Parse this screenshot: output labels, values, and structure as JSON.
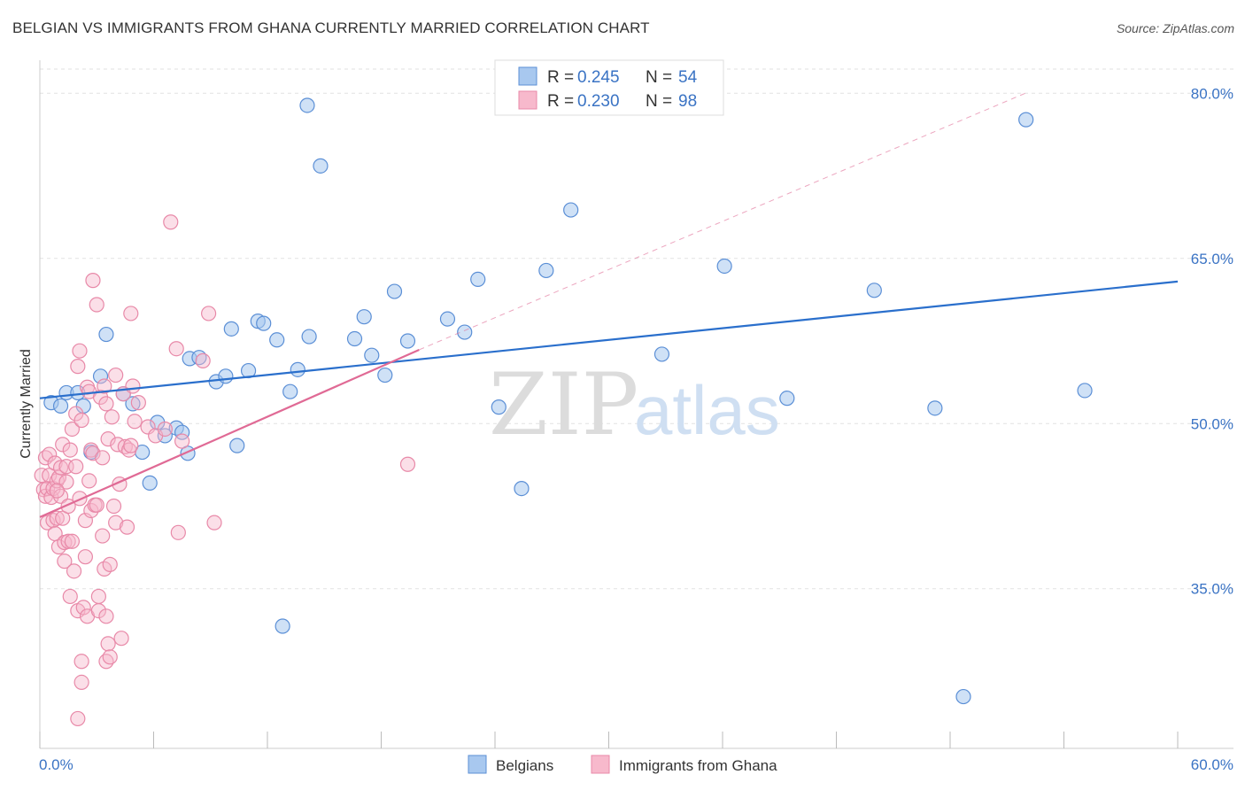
{
  "header": {
    "title": "BELGIAN VS IMMIGRANTS FROM GHANA CURRENTLY MARRIED CORRELATION CHART",
    "source": "Source: ZipAtlas.com"
  },
  "watermark": {
    "zip": "ZIP",
    "atlas": "atlas"
  },
  "colors": {
    "blue_fill": "#a8c8ef",
    "blue_stroke": "#5b8fd6",
    "blue_line": "#2a6fcc",
    "pink_fill": "#f7b9cc",
    "pink_stroke": "#e889a8",
    "pink_line": "#e06a95",
    "axis_text": "#3a73c4"
  },
  "chart_data": {
    "type": "scatter",
    "title": "BELGIAN VS IMMIGRANTS FROM GHANA CURRENTLY MARRIED CORRELATION CHART",
    "xlabel": "",
    "ylabel": "Currently Married",
    "xlim": [
      0,
      60
    ],
    "ylim": [
      20.5,
      83
    ],
    "x_tick_labels": [
      "0.0%",
      "60.0%"
    ],
    "y_ticks": [
      35,
      50,
      65,
      80
    ],
    "y_tick_labels": [
      "35.0%",
      "50.0%",
      "65.0%",
      "80.0%"
    ],
    "legend": [
      {
        "name": "Belgians",
        "R_label": "R =",
        "R": "0.245",
        "N_label": "N =",
        "N": "54"
      },
      {
        "name": "Immigrants from Ghana",
        "R_label": "R =",
        "R": "0.230",
        "N_label": "N =",
        "N": "98"
      }
    ],
    "series": [
      {
        "name": "Belgians",
        "trend": {
          "x": [
            0,
            60
          ],
          "y": [
            52.3,
            62.9
          ]
        },
        "points": [
          [
            0.6,
            51.9
          ],
          [
            1.1,
            51.6
          ],
          [
            1.4,
            52.8
          ],
          [
            2.0,
            52.8
          ],
          [
            2.3,
            51.6
          ],
          [
            2.7,
            47.4
          ],
          [
            3.2,
            54.3
          ],
          [
            3.5,
            58.1
          ],
          [
            4.4,
            52.7
          ],
          [
            4.9,
            51.8
          ],
          [
            5.4,
            47.4
          ],
          [
            5.8,
            44.6
          ],
          [
            6.2,
            50.1
          ],
          [
            6.6,
            48.9
          ],
          [
            7.2,
            49.6
          ],
          [
            7.5,
            49.2
          ],
          [
            7.8,
            47.3
          ],
          [
            7.9,
            55.9
          ],
          [
            8.4,
            56.0
          ],
          [
            9.3,
            53.8
          ],
          [
            9.8,
            54.3
          ],
          [
            10.1,
            58.6
          ],
          [
            10.4,
            48.0
          ],
          [
            11.0,
            54.8
          ],
          [
            11.5,
            59.3
          ],
          [
            11.8,
            59.1
          ],
          [
            12.5,
            57.6
          ],
          [
            12.8,
            31.6
          ],
          [
            13.2,
            52.9
          ],
          [
            13.6,
            54.9
          ],
          [
            14.1,
            78.9
          ],
          [
            14.2,
            57.9
          ],
          [
            14.8,
            73.4
          ],
          [
            16.6,
            57.7
          ],
          [
            17.1,
            59.7
          ],
          [
            17.5,
            56.2
          ],
          [
            18.2,
            54.4
          ],
          [
            18.7,
            62.0
          ],
          [
            19.4,
            57.5
          ],
          [
            21.5,
            59.5
          ],
          [
            22.4,
            58.3
          ],
          [
            23.1,
            63.1
          ],
          [
            24.2,
            51.5
          ],
          [
            25.4,
            44.1
          ],
          [
            26.7,
            63.9
          ],
          [
            28.0,
            69.4
          ],
          [
            32.8,
            56.3
          ],
          [
            36.1,
            64.3
          ],
          [
            39.4,
            52.3
          ],
          [
            44.0,
            62.1
          ],
          [
            47.2,
            51.4
          ],
          [
            48.7,
            25.2
          ],
          [
            52.0,
            77.6
          ],
          [
            55.1,
            53.0
          ]
        ]
      },
      {
        "name": "Immigrants from Ghana",
        "trend": {
          "x": [
            0,
            20.0
          ],
          "y": [
            41.5,
            56.7
          ]
        },
        "trend_extension": {
          "x": [
            20.0,
            52.1
          ],
          "y": [
            56.7,
            80.1
          ]
        },
        "points": [
          [
            0.1,
            45.3
          ],
          [
            0.2,
            44.0
          ],
          [
            0.3,
            46.9
          ],
          [
            0.3,
            43.4
          ],
          [
            0.4,
            41.0
          ],
          [
            0.4,
            44.1
          ],
          [
            0.5,
            47.2
          ],
          [
            0.5,
            45.3
          ],
          [
            0.6,
            43.3
          ],
          [
            0.7,
            44.1
          ],
          [
            0.7,
            41.2
          ],
          [
            0.8,
            40.0
          ],
          [
            0.8,
            46.4
          ],
          [
            0.9,
            44.8
          ],
          [
            0.9,
            41.4
          ],
          [
            1.0,
            45.1
          ],
          [
            1.0,
            38.8
          ],
          [
            1.1,
            43.4
          ],
          [
            1.1,
            46.0
          ],
          [
            1.2,
            41.4
          ],
          [
            1.2,
            48.1
          ],
          [
            1.3,
            37.5
          ],
          [
            1.3,
            39.2
          ],
          [
            1.4,
            44.7
          ],
          [
            1.4,
            46.1
          ],
          [
            1.5,
            39.3
          ],
          [
            1.5,
            42.5
          ],
          [
            1.6,
            34.3
          ],
          [
            1.6,
            47.6
          ],
          [
            1.7,
            49.5
          ],
          [
            1.7,
            39.3
          ],
          [
            1.8,
            36.6
          ],
          [
            1.9,
            50.9
          ],
          [
            1.9,
            46.1
          ],
          [
            2.0,
            23.2
          ],
          [
            2.0,
            33.0
          ],
          [
            2.0,
            55.2
          ],
          [
            2.1,
            56.6
          ],
          [
            2.1,
            43.2
          ],
          [
            2.2,
            26.5
          ],
          [
            2.2,
            28.4
          ],
          [
            2.2,
            50.3
          ],
          [
            2.3,
            33.3
          ],
          [
            2.4,
            41.2
          ],
          [
            2.4,
            37.9
          ],
          [
            2.5,
            32.5
          ],
          [
            2.5,
            53.3
          ],
          [
            2.6,
            44.8
          ],
          [
            2.6,
            52.9
          ],
          [
            2.7,
            42.1
          ],
          [
            2.7,
            47.6
          ],
          [
            2.8,
            63.0
          ],
          [
            2.8,
            47.3
          ],
          [
            2.9,
            42.6
          ],
          [
            3.0,
            42.6
          ],
          [
            3.0,
            60.8
          ],
          [
            3.1,
            34.3
          ],
          [
            3.1,
            33.0
          ],
          [
            3.2,
            52.4
          ],
          [
            3.3,
            39.8
          ],
          [
            3.3,
            46.9
          ],
          [
            3.4,
            53.4
          ],
          [
            3.4,
            36.8
          ],
          [
            3.5,
            51.8
          ],
          [
            3.5,
            32.5
          ],
          [
            3.5,
            28.4
          ],
          [
            3.6,
            48.6
          ],
          [
            3.6,
            30.0
          ],
          [
            3.7,
            37.2
          ],
          [
            3.7,
            28.8
          ],
          [
            3.8,
            50.6
          ],
          [
            3.9,
            42.5
          ],
          [
            4.0,
            54.4
          ],
          [
            4.0,
            41.0
          ],
          [
            4.1,
            48.1
          ],
          [
            4.2,
            44.5
          ],
          [
            4.3,
            30.5
          ],
          [
            4.4,
            52.7
          ],
          [
            4.5,
            47.9
          ],
          [
            4.6,
            40.6
          ],
          [
            4.7,
            47.6
          ],
          [
            4.8,
            60.0
          ],
          [
            4.8,
            48.0
          ],
          [
            4.9,
            53.4
          ],
          [
            5.0,
            50.2
          ],
          [
            5.2,
            51.9
          ],
          [
            5.7,
            49.7
          ],
          [
            6.1,
            48.9
          ],
          [
            6.6,
            49.5
          ],
          [
            6.9,
            68.3
          ],
          [
            7.2,
            56.8
          ],
          [
            7.3,
            40.1
          ],
          [
            7.5,
            48.4
          ],
          [
            8.6,
            55.7
          ],
          [
            8.9,
            60.0
          ],
          [
            9.2,
            41.0
          ],
          [
            19.4,
            46.3
          ],
          [
            0.9,
            43.9
          ]
        ]
      }
    ]
  }
}
